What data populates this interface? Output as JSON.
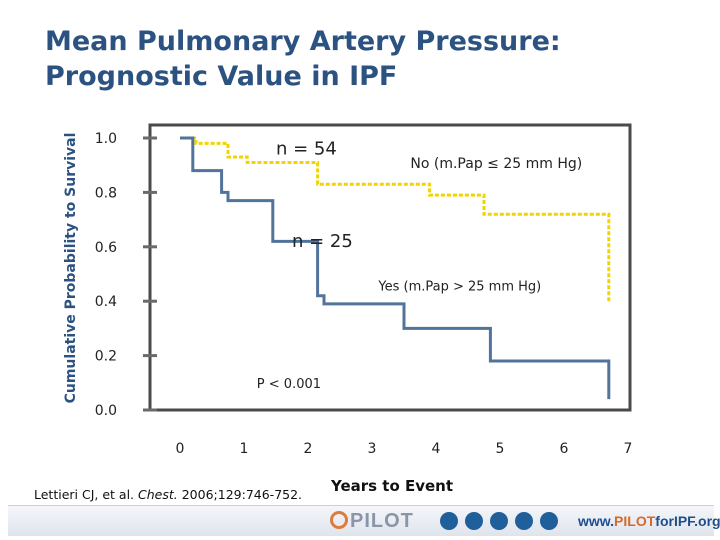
{
  "title_line1": "Mean Pulmonary Artery Pressure:",
  "title_line2": "Prognostic Value in IPF",
  "citation_authors": "Lettieri CJ, et al.",
  "citation_journal": "Chest.",
  "citation_rest": "2006;129:746-752.",
  "footer": {
    "brand": "PILOT",
    "url_prefix": "www.",
    "url_accent": "PILOT",
    "url_suffix": "forIPF.org"
  },
  "colors": {
    "title": "#2b5281",
    "no_series": "#f2d400",
    "yes_series": "#52739a"
  },
  "chart_data": {
    "type": "line",
    "xlabel": "Years to Event",
    "ylabel": "Cumulative Probability to Survival",
    "xlim": [
      0,
      7
    ],
    "ylim": [
      0,
      1.0
    ],
    "xticks": [
      "0",
      "1",
      "2",
      "3",
      "4",
      "5",
      "6",
      "7"
    ],
    "yticks": [
      "0.0",
      "0.2",
      "0.4",
      "0.6",
      "0.8",
      "1.0"
    ],
    "grid": false,
    "series": [
      {
        "name": "No (m.Pap ≤ 25 mm Hg)",
        "count_label": "n = 54",
        "color": "#f2d400",
        "dash": "dotted",
        "steps": [
          [
            0,
            1.0
          ],
          [
            0.25,
            1.0
          ],
          [
            0.25,
            0.98
          ],
          [
            0.75,
            0.98
          ],
          [
            0.75,
            0.93
          ],
          [
            1.05,
            0.93
          ],
          [
            1.05,
            0.91
          ],
          [
            2.15,
            0.91
          ],
          [
            2.15,
            0.83
          ],
          [
            3.9,
            0.83
          ],
          [
            3.9,
            0.79
          ],
          [
            4.75,
            0.79
          ],
          [
            4.75,
            0.72
          ],
          [
            6.7,
            0.72
          ],
          [
            6.7,
            0.4
          ]
        ]
      },
      {
        "name": "Yes (m.Pap > 25 mm Hg)",
        "count_label": "n = 25",
        "color": "#52739a",
        "dash": "solid",
        "steps": [
          [
            0,
            1.0
          ],
          [
            0.2,
            1.0
          ],
          [
            0.2,
            0.88
          ],
          [
            0.65,
            0.88
          ],
          [
            0.65,
            0.8
          ],
          [
            0.75,
            0.8
          ],
          [
            0.75,
            0.77
          ],
          [
            1.45,
            0.77
          ],
          [
            1.45,
            0.62
          ],
          [
            2.15,
            0.62
          ],
          [
            2.15,
            0.42
          ],
          [
            2.25,
            0.42
          ],
          [
            2.25,
            0.39
          ],
          [
            3.5,
            0.39
          ],
          [
            3.5,
            0.3
          ],
          [
            4.85,
            0.3
          ],
          [
            4.85,
            0.18
          ],
          [
            6.7,
            0.18
          ],
          [
            6.7,
            0.04
          ]
        ]
      }
    ],
    "annotations": [
      {
        "text": "P < 0.001"
      }
    ]
  }
}
